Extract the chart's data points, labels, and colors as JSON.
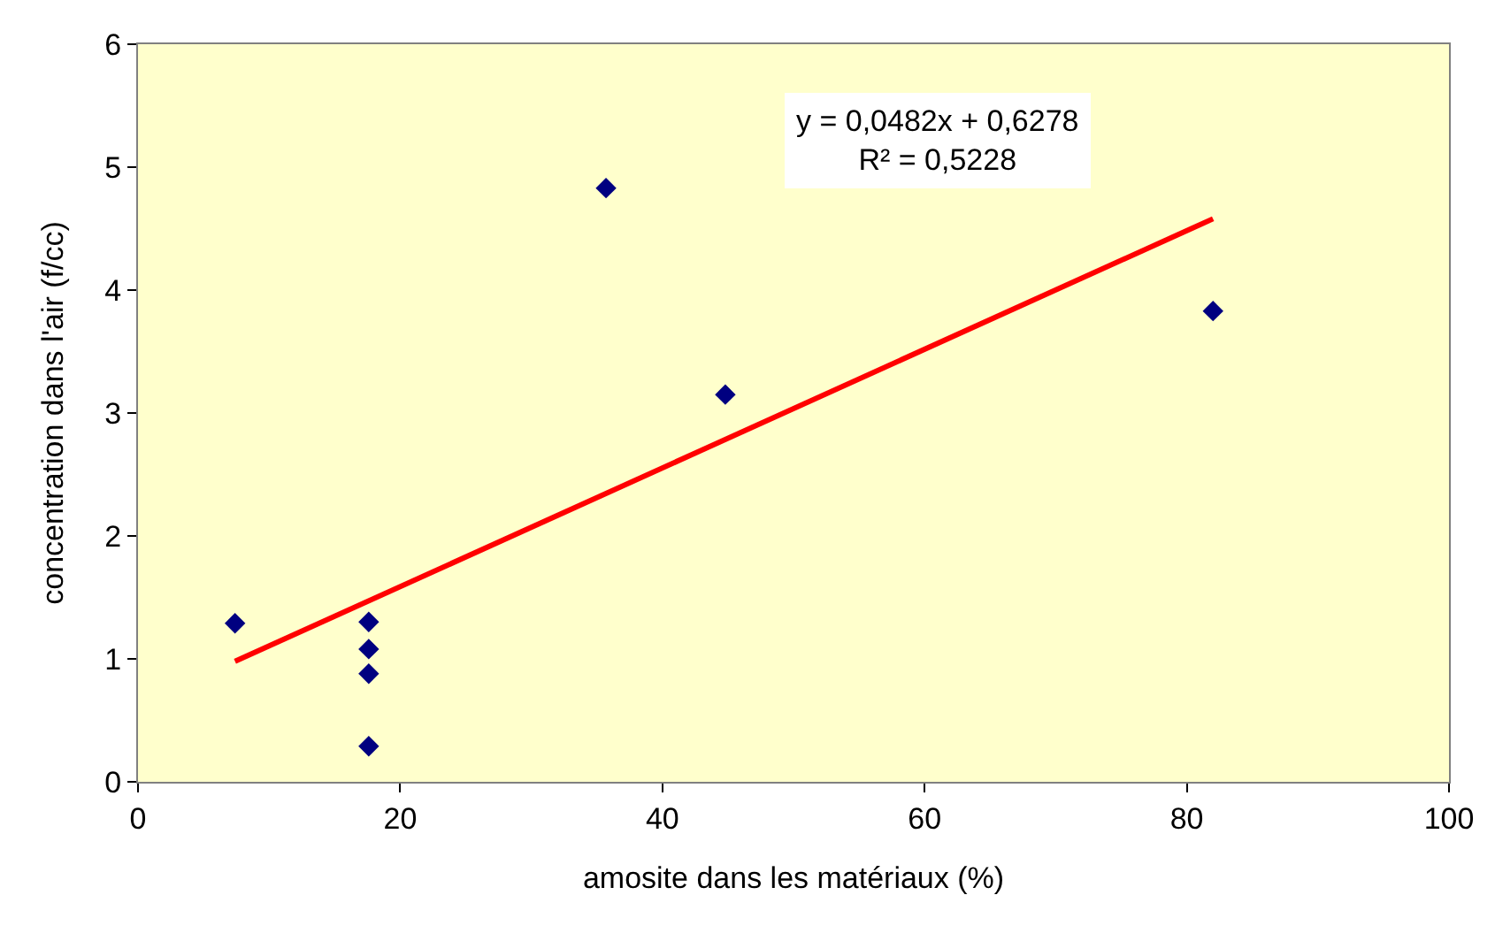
{
  "chart_data": {
    "type": "scatter",
    "xlabel": "amosite dans les matériaux (%)",
    "ylabel": "concentration dans l'air (f/cc)",
    "xlim": [
      0,
      100
    ],
    "xticks": [
      0,
      20,
      40,
      60,
      80,
      100
    ],
    "ylim": [
      0,
      6
    ],
    "yticks": [
      0,
      1,
      2,
      3,
      4,
      5,
      6
    ],
    "grid": false,
    "legend": false,
    "marker": "diamond",
    "annotations": [
      "y = 0,0482x + 0,6278",
      "R² = 0,5228"
    ],
    "series": [
      {
        "color": "#000080",
        "x": [
          7.4,
          17.6,
          17.6,
          17.6,
          17.6,
          35.7,
          44.8,
          82.0
        ],
        "values": [
          1.29,
          1.3,
          1.08,
          0.88,
          0.29,
          4.83,
          3.15,
          3.83
        ]
      },
      {
        "type": "line",
        "color": "#ff0000",
        "x": [
          7.4,
          82.0
        ],
        "values": [
          0.98,
          4.58
        ],
        "line_style": "solid",
        "marker": "none"
      }
    ]
  }
}
